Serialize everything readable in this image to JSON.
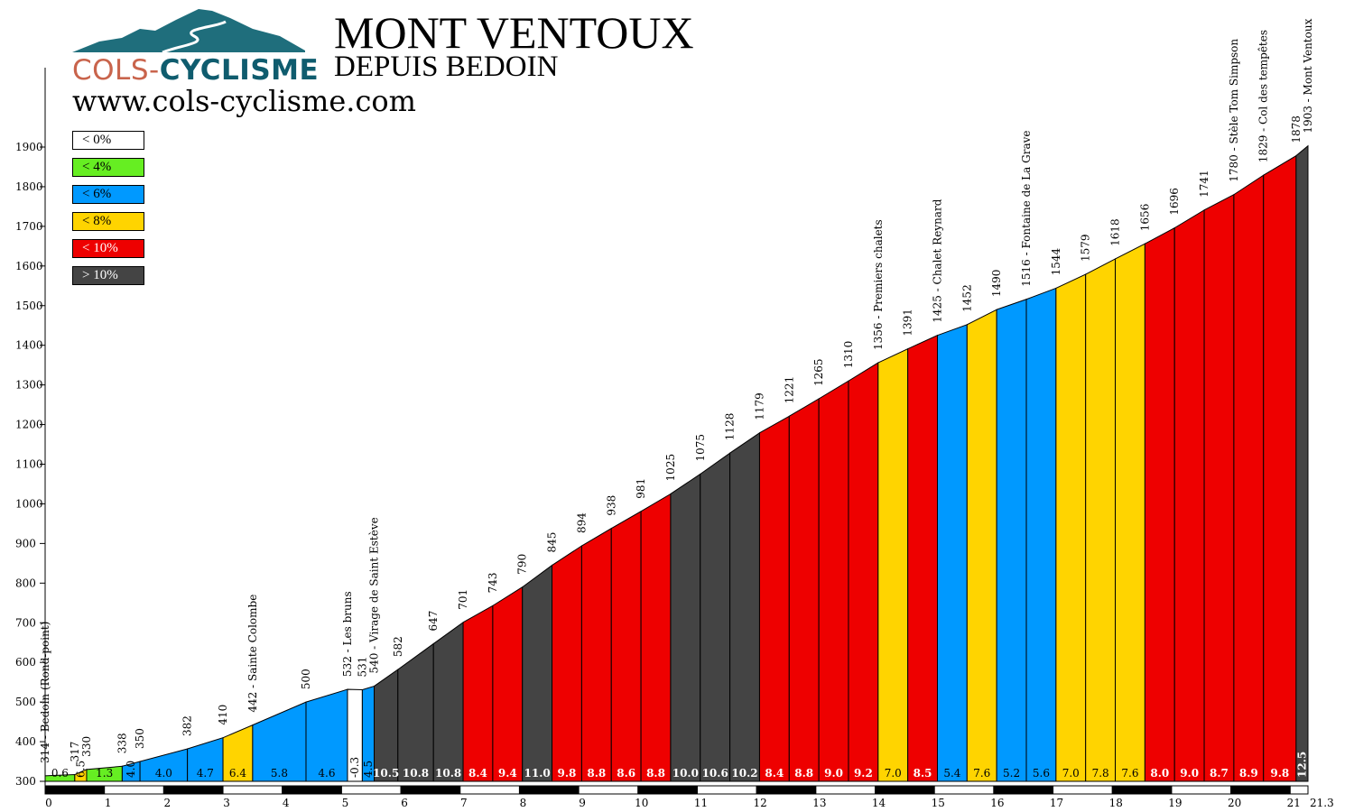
{
  "header": {
    "title": "MONT VENTOUX",
    "subtitle": "DEPUIS BEDOIN",
    "url": "www.cols-cyclisme.com",
    "logo_part1": "COLS-",
    "logo_part2": "CYCLISME"
  },
  "legend": [
    {
      "label": "< 0%",
      "color": "#ffffff",
      "text_color": "#000000"
    },
    {
      "label": "< 4%",
      "color": "#66ee22",
      "text_color": "#000000"
    },
    {
      "label": "< 6%",
      "color": "#0099ff",
      "text_color": "#000000"
    },
    {
      "label": "< 8%",
      "color": "#ffd400",
      "text_color": "#000000"
    },
    {
      "label": "< 10%",
      "color": "#ee0000",
      "text_color": "#ffffff"
    },
    {
      "label": "> 10%",
      "color": "#444444",
      "text_color": "#ffffff"
    }
  ],
  "chart_data": {
    "type": "area",
    "title": "MONT VENTOUX",
    "subtitle": "DEPUIS BEDOIN",
    "xlabel": "",
    "ylabel": "",
    "xlim": [
      0,
      21.3
    ],
    "ylim": [
      300,
      1900
    ],
    "x_ticks": [
      "0",
      "1",
      "2",
      "3",
      "4",
      "5",
      "6",
      "7",
      "8",
      "9",
      "10",
      "11",
      "12",
      "13",
      "14",
      "15",
      "16",
      "17",
      "18",
      "19",
      "20",
      "21",
      "21.3"
    ],
    "y_ticks": [
      "300",
      "400",
      "500",
      "600",
      "700",
      "800",
      "900",
      "1000",
      "1100",
      "1200",
      "1300",
      "1400",
      "1500",
      "1600",
      "1700",
      "1800",
      "1900"
    ],
    "points": [
      {
        "km": 0,
        "alt": 314,
        "label": "314 - Bedoin (Rond-point)"
      },
      {
        "km": 0.5,
        "alt": 317,
        "label": "317"
      },
      {
        "km": 0.7,
        "alt": 330,
        "label": "330"
      },
      {
        "km": 1.3,
        "alt": 338,
        "label": "338"
      },
      {
        "km": 1.6,
        "alt": 350,
        "label": "350"
      },
      {
        "km": 2.4,
        "alt": 382,
        "label": "382"
      },
      {
        "km": 3.0,
        "alt": 410,
        "label": "410"
      },
      {
        "km": 3.5,
        "alt": 442,
        "label": "442 - Sainte Colombe"
      },
      {
        "km": 4.4,
        "alt": 500,
        "label": "500"
      },
      {
        "km": 5.1,
        "alt": 532,
        "label": "532 - Les bruns"
      },
      {
        "km": 5.35,
        "alt": 531,
        "label": "531"
      },
      {
        "km": 5.55,
        "alt": 540,
        "label": "540 - Virage de Saint Estève"
      },
      {
        "km": 5.95,
        "alt": 582,
        "label": "582"
      },
      {
        "km": 6.55,
        "alt": 647,
        "label": "647"
      },
      {
        "km": 7.05,
        "alt": 701,
        "label": "701"
      },
      {
        "km": 7.55,
        "alt": 743,
        "label": "743"
      },
      {
        "km": 8.05,
        "alt": 790,
        "label": "790"
      },
      {
        "km": 8.55,
        "alt": 845,
        "label": "845"
      },
      {
        "km": 9.05,
        "alt": 894,
        "label": "894"
      },
      {
        "km": 9.55,
        "alt": 938,
        "label": "938"
      },
      {
        "km": 10.05,
        "alt": 981,
        "label": "981"
      },
      {
        "km": 10.55,
        "alt": 1025,
        "label": "1025"
      },
      {
        "km": 11.05,
        "alt": 1075,
        "label": "1075"
      },
      {
        "km": 11.55,
        "alt": 1128,
        "label": "1128"
      },
      {
        "km": 12.05,
        "alt": 1179,
        "label": "1179"
      },
      {
        "km": 12.55,
        "alt": 1221,
        "label": "1221"
      },
      {
        "km": 13.05,
        "alt": 1265,
        "label": "1265"
      },
      {
        "km": 13.55,
        "alt": 1310,
        "label": "1310"
      },
      {
        "km": 14.05,
        "alt": 1356,
        "label": "1356 - Premiers chalets"
      },
      {
        "km": 14.55,
        "alt": 1391,
        "label": "1391"
      },
      {
        "km": 15.05,
        "alt": 1425,
        "label": "1425 - Chalet Reynard"
      },
      {
        "km": 15.55,
        "alt": 1452,
        "label": "1452"
      },
      {
        "km": 16.05,
        "alt": 1490,
        "label": "1490"
      },
      {
        "km": 16.55,
        "alt": 1516,
        "label": "1516 - Fontaine de La Grave"
      },
      {
        "km": 17.05,
        "alt": 1544,
        "label": "1544"
      },
      {
        "km": 17.55,
        "alt": 1579,
        "label": "1579"
      },
      {
        "km": 18.05,
        "alt": 1618,
        "label": "1618"
      },
      {
        "km": 18.55,
        "alt": 1656,
        "label": "1656"
      },
      {
        "km": 19.05,
        "alt": 1696,
        "label": "1696"
      },
      {
        "km": 19.55,
        "alt": 1741,
        "label": "1741"
      },
      {
        "km": 20.05,
        "alt": 1780,
        "label": "1780 - Stèle Tom Simpson"
      },
      {
        "km": 20.55,
        "alt": 1829,
        "label": "1829 - Col des tempêtes"
      },
      {
        "km": 21.1,
        "alt": 1878,
        "label": "1878"
      },
      {
        "km": 21.3,
        "alt": 1903,
        "label": "1903 - Mont Ventoux"
      }
    ],
    "segments": [
      {
        "grade": "0.6",
        "color": "#66ee22"
      },
      {
        "grade": "6.5",
        "color": "#ffd400"
      },
      {
        "grade": "1.3",
        "color": "#66ee22"
      },
      {
        "grade": "4.0",
        "color": "#0099ff"
      },
      {
        "grade": "4.0",
        "color": "#0099ff"
      },
      {
        "grade": "4.7",
        "color": "#0099ff"
      },
      {
        "grade": "6.4",
        "color": "#ffd400"
      },
      {
        "grade": "5.8",
        "color": "#0099ff"
      },
      {
        "grade": "4.6",
        "color": "#0099ff"
      },
      {
        "grade": "-0.3",
        "color": "#ffffff"
      },
      {
        "grade": "4.5",
        "color": "#0099ff"
      },
      {
        "grade": "10.5",
        "color": "#444444"
      },
      {
        "grade": "10.8",
        "color": "#444444"
      },
      {
        "grade": "10.8",
        "color": "#444444"
      },
      {
        "grade": "8.4",
        "color": "#ee0000"
      },
      {
        "grade": "9.4",
        "color": "#ee0000"
      },
      {
        "grade": "11.0",
        "color": "#444444"
      },
      {
        "grade": "9.8",
        "color": "#ee0000"
      },
      {
        "grade": "8.8",
        "color": "#ee0000"
      },
      {
        "grade": "8.6",
        "color": "#ee0000"
      },
      {
        "grade": "8.8",
        "color": "#ee0000"
      },
      {
        "grade": "10.0",
        "color": "#444444"
      },
      {
        "grade": "10.6",
        "color": "#444444"
      },
      {
        "grade": "10.2",
        "color": "#444444"
      },
      {
        "grade": "8.4",
        "color": "#ee0000"
      },
      {
        "grade": "8.8",
        "color": "#ee0000"
      },
      {
        "grade": "9.0",
        "color": "#ee0000"
      },
      {
        "grade": "9.2",
        "color": "#ee0000"
      },
      {
        "grade": "7.0",
        "color": "#ffd400"
      },
      {
        "grade": "8.5",
        "color": "#ee0000"
      },
      {
        "grade": "5.4",
        "color": "#0099ff"
      },
      {
        "grade": "7.6",
        "color": "#ffd400"
      },
      {
        "grade": "5.2",
        "color": "#0099ff"
      },
      {
        "grade": "5.6",
        "color": "#0099ff"
      },
      {
        "grade": "7.0",
        "color": "#ffd400"
      },
      {
        "grade": "7.8",
        "color": "#ffd400"
      },
      {
        "grade": "7.6",
        "color": "#ffd400"
      },
      {
        "grade": "8.0",
        "color": "#ee0000"
      },
      {
        "grade": "9.0",
        "color": "#ee0000"
      },
      {
        "grade": "8.7",
        "color": "#ee0000"
      },
      {
        "grade": "8.9",
        "color": "#ee0000"
      },
      {
        "grade": "9.8",
        "color": "#ee0000"
      },
      {
        "grade": "12.5",
        "color": "#444444"
      }
    ]
  }
}
